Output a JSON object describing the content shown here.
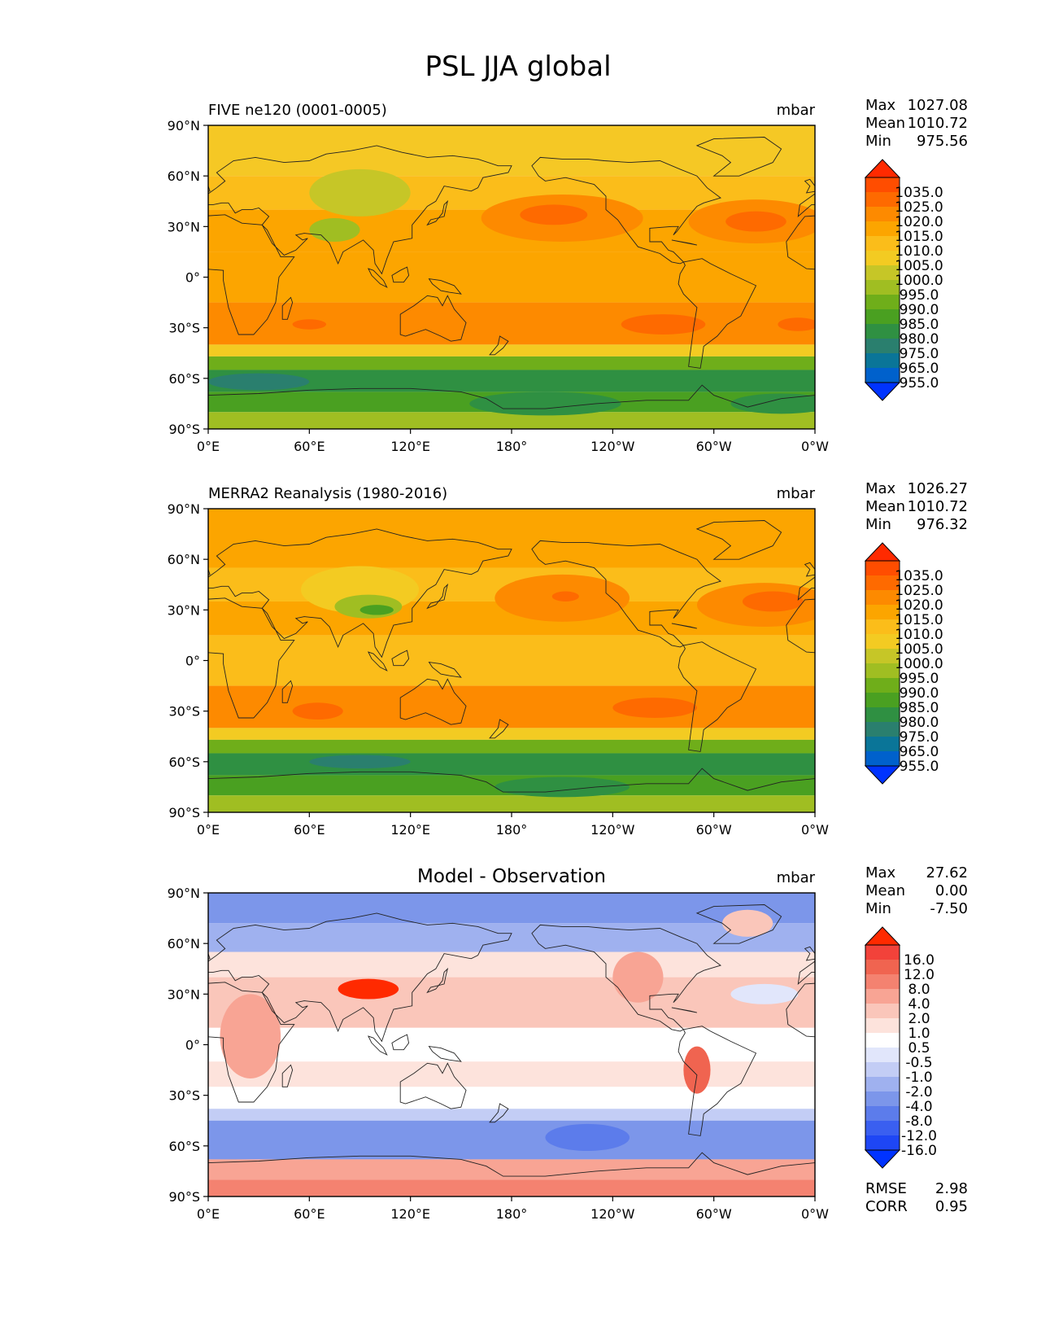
{
  "title": "PSL JJA global",
  "lat_ticks": [
    "90°N",
    "60°N",
    "30°N",
    "0°",
    "30°S",
    "60°S",
    "90°S"
  ],
  "lon_ticks": [
    "0°E",
    "60°E",
    "120°E",
    "180°",
    "120°W",
    "60°W",
    "0°W"
  ],
  "stat_labels": {
    "max": "Max",
    "mean": "Mean",
    "min": "Min",
    "rmse": "RMSE",
    "corr": "CORR"
  },
  "panels": [
    {
      "id": "model",
      "title": "FIVE ne120 (0001-0005)",
      "title_pos": "left",
      "units": "mbar",
      "stats": {
        "max": "1027.08",
        "mean": "1010.72",
        "min": "975.56"
      },
      "colorbar": {
        "labels": [
          "1035.0",
          "1025.0",
          "1020.0",
          "1015.0",
          "1010.0",
          "1005.0",
          "1000.0",
          "995.0",
          "990.0",
          "985.0",
          "980.0",
          "975.0",
          "965.0",
          "955.0"
        ],
        "colors": [
          "#ff2a00",
          "#ff4d00",
          "#fe6a00",
          "#fd8a00",
          "#fca500",
          "#fbbd1a",
          "#f3cb22",
          "#c6c627",
          "#a0be22",
          "#6fae1a",
          "#4aa021",
          "#2f9042",
          "#2a7f6e",
          "#0a7598",
          "#0061cc",
          "#0033ff"
        ]
      },
      "map": {
        "bands": [
          {
            "lat": [
              60,
              90
            ],
            "color": "#f5c825"
          },
          {
            "lat": [
              40,
              60
            ],
            "color": "#fbbd1a"
          },
          {
            "lat": [
              15,
              40
            ],
            "color": "#fca500"
          },
          {
            "lat": [
              -15,
              15
            ],
            "color": "#fca500"
          },
          {
            "lat": [
              -40,
              -15
            ],
            "color": "#fd8a00"
          },
          {
            "lat": [
              -47,
              -40
            ],
            "color": "#f3cb22"
          },
          {
            "lat": [
              -55,
              -47
            ],
            "color": "#6fae1a"
          },
          {
            "lat": [
              -68,
              -55
            ],
            "color": "#2f9042"
          },
          {
            "lat": [
              -80,
              -68
            ],
            "color": "#4aa021"
          },
          {
            "lat": [
              -90,
              -80
            ],
            "color": "#a0be22"
          }
        ],
        "blobs": [
          {
            "lon": 90,
            "lat": 50,
            "rlon": 30,
            "rlat": 14,
            "color": "#c6c627"
          },
          {
            "lon": 75,
            "lat": 28,
            "rlon": 15,
            "rlat": 7,
            "color": "#a0be22"
          },
          {
            "lon": 210,
            "lat": 35,
            "rlon": 48,
            "rlat": 14,
            "color": "#fd8a00"
          },
          {
            "lon": 205,
            "lat": 37,
            "rlon": 20,
            "rlat": 6,
            "color": "#fe6a00"
          },
          {
            "lon": 325,
            "lat": 33,
            "rlon": 40,
            "rlat": 13,
            "color": "#fd8a00"
          },
          {
            "lon": 325,
            "lat": 33,
            "rlon": 18,
            "rlat": 6,
            "color": "#fe6a00"
          },
          {
            "lon": 60,
            "lat": -28,
            "rlon": 10,
            "rlat": 3,
            "color": "#fe6a00"
          },
          {
            "lon": 270,
            "lat": -28,
            "rlon": 25,
            "rlat": 6,
            "color": "#fe6a00"
          },
          {
            "lon": 350,
            "lat": -28,
            "rlon": 12,
            "rlat": 4,
            "color": "#fe6a00"
          },
          {
            "lon": 30,
            "lat": -62,
            "rlon": 30,
            "rlat": 5,
            "color": "#2a7f6e"
          },
          {
            "lon": 200,
            "lat": -75,
            "rlon": 45,
            "rlat": 7,
            "color": "#2f9042"
          },
          {
            "lon": 340,
            "lat": -75,
            "rlon": 30,
            "rlat": 6,
            "color": "#2f9042"
          }
        ]
      }
    },
    {
      "id": "obs",
      "title": "MERRA2 Reanalysis (1980-2016)",
      "title_pos": "left",
      "units": "mbar",
      "stats": {
        "max": "1026.27",
        "mean": "1010.72",
        "min": "976.32"
      },
      "colorbar": {
        "labels": [
          "1035.0",
          "1025.0",
          "1020.0",
          "1015.0",
          "1010.0",
          "1005.0",
          "1000.0",
          "995.0",
          "990.0",
          "985.0",
          "980.0",
          "975.0",
          "965.0",
          "955.0"
        ],
        "colors": [
          "#ff2a00",
          "#ff4d00",
          "#fe6a00",
          "#fd8a00",
          "#fca500",
          "#fbbd1a",
          "#f3cb22",
          "#c6c627",
          "#a0be22",
          "#6fae1a",
          "#4aa021",
          "#2f9042",
          "#2a7f6e",
          "#0a7598",
          "#0061cc",
          "#0033ff"
        ]
      },
      "map": {
        "bands": [
          {
            "lat": [
              55,
              90
            ],
            "color": "#fca500"
          },
          {
            "lat": [
              35,
              55
            ],
            "color": "#fbbd1a"
          },
          {
            "lat": [
              15,
              35
            ],
            "color": "#fca500"
          },
          {
            "lat": [
              -15,
              15
            ],
            "color": "#fbbd1a"
          },
          {
            "lat": [
              -40,
              -15
            ],
            "color": "#fd8a00"
          },
          {
            "lat": [
              -47,
              -40
            ],
            "color": "#f3cb22"
          },
          {
            "lat": [
              -55,
              -47
            ],
            "color": "#6fae1a"
          },
          {
            "lat": [
              -68,
              -55
            ],
            "color": "#2f9042"
          },
          {
            "lat": [
              -80,
              -68
            ],
            "color": "#4aa021"
          },
          {
            "lat": [
              -90,
              -80
            ],
            "color": "#a0be22"
          }
        ],
        "blobs": [
          {
            "lon": 90,
            "lat": 42,
            "rlon": 35,
            "rlat": 14,
            "color": "#f3cb22"
          },
          {
            "lon": 95,
            "lat": 32,
            "rlon": 20,
            "rlat": 7,
            "color": "#a0be22"
          },
          {
            "lon": 100,
            "lat": 30,
            "rlon": 10,
            "rlat": 3,
            "color": "#4aa021"
          },
          {
            "lon": 210,
            "lat": 37,
            "rlon": 40,
            "rlat": 14,
            "color": "#fd8a00"
          },
          {
            "lon": 212,
            "lat": 38,
            "rlon": 8,
            "rlat": 3,
            "color": "#fe6a00"
          },
          {
            "lon": 330,
            "lat": 33,
            "rlon": 40,
            "rlat": 13,
            "color": "#fd8a00"
          },
          {
            "lon": 335,
            "lat": 35,
            "rlon": 18,
            "rlat": 6,
            "color": "#fe6a00"
          },
          {
            "lon": 65,
            "lat": -30,
            "rlon": 15,
            "rlat": 5,
            "color": "#fe6a00"
          },
          {
            "lon": 265,
            "lat": -28,
            "rlon": 25,
            "rlat": 6,
            "color": "#fe6a00"
          },
          {
            "lon": 90,
            "lat": -60,
            "rlon": 30,
            "rlat": 4,
            "color": "#2a7f6e"
          },
          {
            "lon": 210,
            "lat": -75,
            "rlon": 40,
            "rlat": 6,
            "color": "#2f9042"
          }
        ]
      }
    },
    {
      "id": "diff",
      "title": "Model - Observation",
      "title_pos": "center",
      "units": "mbar",
      "stats": {
        "max": "27.62",
        "mean": "0.00",
        "min": "-7.50"
      },
      "metrics": {
        "rmse": "2.98",
        "corr": "0.95"
      },
      "colorbar": {
        "labels": [
          "16.0",
          "12.0",
          "8.0",
          "4.0",
          "2.0",
          "1.0",
          "0.5",
          "-0.5",
          "-1.0",
          "-2.0",
          "-4.0",
          "-8.0",
          "-12.0",
          "-16.0"
        ],
        "colors": [
          "#ff2a00",
          "#f2423a",
          "#f06450",
          "#f48270",
          "#f8a494",
          "#fac6ba",
          "#fde3dc",
          "#ffffff",
          "#e1e6fb",
          "#c3cdf5",
          "#9fb1ef",
          "#7c96ea",
          "#5c7ceb",
          "#3a5ff0",
          "#1e46f5",
          "#0033ff"
        ]
      },
      "map": {
        "bands": [
          {
            "lat": [
              72,
              90
            ],
            "color": "#7c96ea"
          },
          {
            "lat": [
              55,
              72
            ],
            "color": "#9fb1ef"
          },
          {
            "lat": [
              40,
              55
            ],
            "color": "#fde3dc"
          },
          {
            "lat": [
              10,
              40
            ],
            "color": "#fac6ba"
          },
          {
            "lat": [
              -10,
              10
            ],
            "color": "#ffffff"
          },
          {
            "lat": [
              -25,
              -10
            ],
            "color": "#fde3dc"
          },
          {
            "lat": [
              -38,
              -25
            ],
            "color": "#ffffff"
          },
          {
            "lat": [
              -45,
              -38
            ],
            "color": "#c3cdf5"
          },
          {
            "lat": [
              -68,
              -45
            ],
            "color": "#7c96ea"
          },
          {
            "lat": [
              -80,
              -68
            ],
            "color": "#f8a494"
          },
          {
            "lat": [
              -90,
              -80
            ],
            "color": "#f48270"
          }
        ],
        "blobs": [
          {
            "lon": 95,
            "lat": 33,
            "rlon": 18,
            "rlat": 6,
            "color": "#ff2a00"
          },
          {
            "lon": 25,
            "lat": 5,
            "rlon": 18,
            "rlat": 25,
            "color": "#f8a494"
          },
          {
            "lon": 290,
            "lat": -15,
            "rlon": 8,
            "rlat": 14,
            "color": "#f06450"
          },
          {
            "lon": 255,
            "lat": 40,
            "rlon": 15,
            "rlat": 15,
            "color": "#f8a494"
          },
          {
            "lon": 320,
            "lat": 72,
            "rlon": 15,
            "rlat": 8,
            "color": "#fac6ba"
          },
          {
            "lon": 225,
            "lat": -55,
            "rlon": 25,
            "rlat": 8,
            "color": "#5c7ceb"
          },
          {
            "lon": 330,
            "lat": 30,
            "rlon": 20,
            "rlat": 6,
            "color": "#e1e6fb"
          }
        ]
      }
    }
  ]
}
